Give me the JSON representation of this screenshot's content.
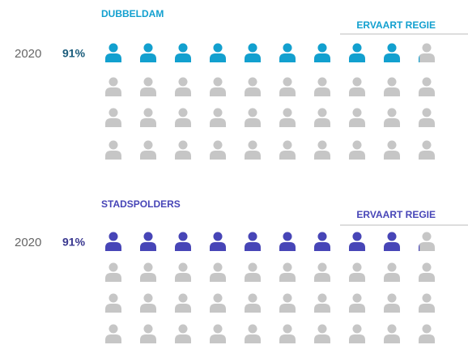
{
  "chart_data": [
    {
      "type": "pictogram",
      "title": "DUBBELDAM",
      "label": "ERVAART REGIE",
      "categories": [
        "2020"
      ],
      "values": [
        91
      ],
      "value_labels": [
        "91%"
      ],
      "color": "#12a0cf",
      "label_color": "#1b5d7c",
      "ylim": [
        0,
        100
      ]
    },
    {
      "type": "pictogram",
      "title": "STADSPOLDERS",
      "label": "ERVAART REGIE",
      "categories": [
        "2020"
      ],
      "values": [
        91
      ],
      "value_labels": [
        "91%"
      ],
      "color": "#4745b7",
      "label_color": "#3a3890",
      "ylim": [
        0,
        100
      ]
    }
  ]
}
